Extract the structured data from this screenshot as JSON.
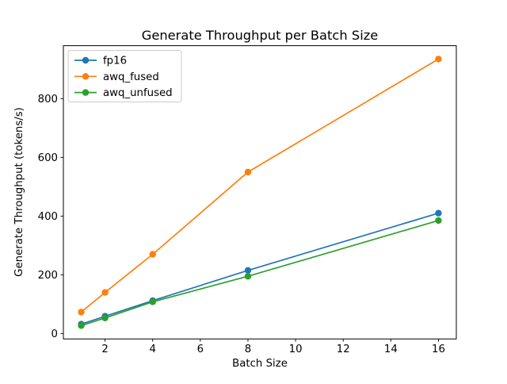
{
  "figure": {
    "background": "#ffffff",
    "frame_color": "#000000"
  },
  "chart_data": {
    "type": "line",
    "title": "Generate Throughput per Batch Size",
    "xlabel": "Batch Size",
    "ylabel": "Generate Throughput (tokens/s)",
    "x": [
      1,
      2,
      4,
      8,
      16
    ],
    "series": [
      {
        "name": "fp16",
        "color": "#1f77b4",
        "values": [
          32,
          59,
          112,
          215,
          410
        ]
      },
      {
        "name": "awq_fused",
        "color": "#ff7f0e",
        "values": [
          73,
          140,
          270,
          550,
          935
        ]
      },
      {
        "name": "awq_unfused",
        "color": "#2ca02c",
        "values": [
          27,
          53,
          108,
          195,
          385
        ]
      }
    ],
    "marker": "o",
    "xticks": [
      2,
      4,
      6,
      8,
      10,
      12,
      14,
      16
    ],
    "yticks": [
      0,
      200,
      400,
      600,
      800
    ],
    "xlim": [
      0.25,
      16.75
    ],
    "ylim": [
      -18.4,
      980.4
    ],
    "grid": false,
    "legend_position": "upper left",
    "legend_border_color": "#cccccc"
  }
}
